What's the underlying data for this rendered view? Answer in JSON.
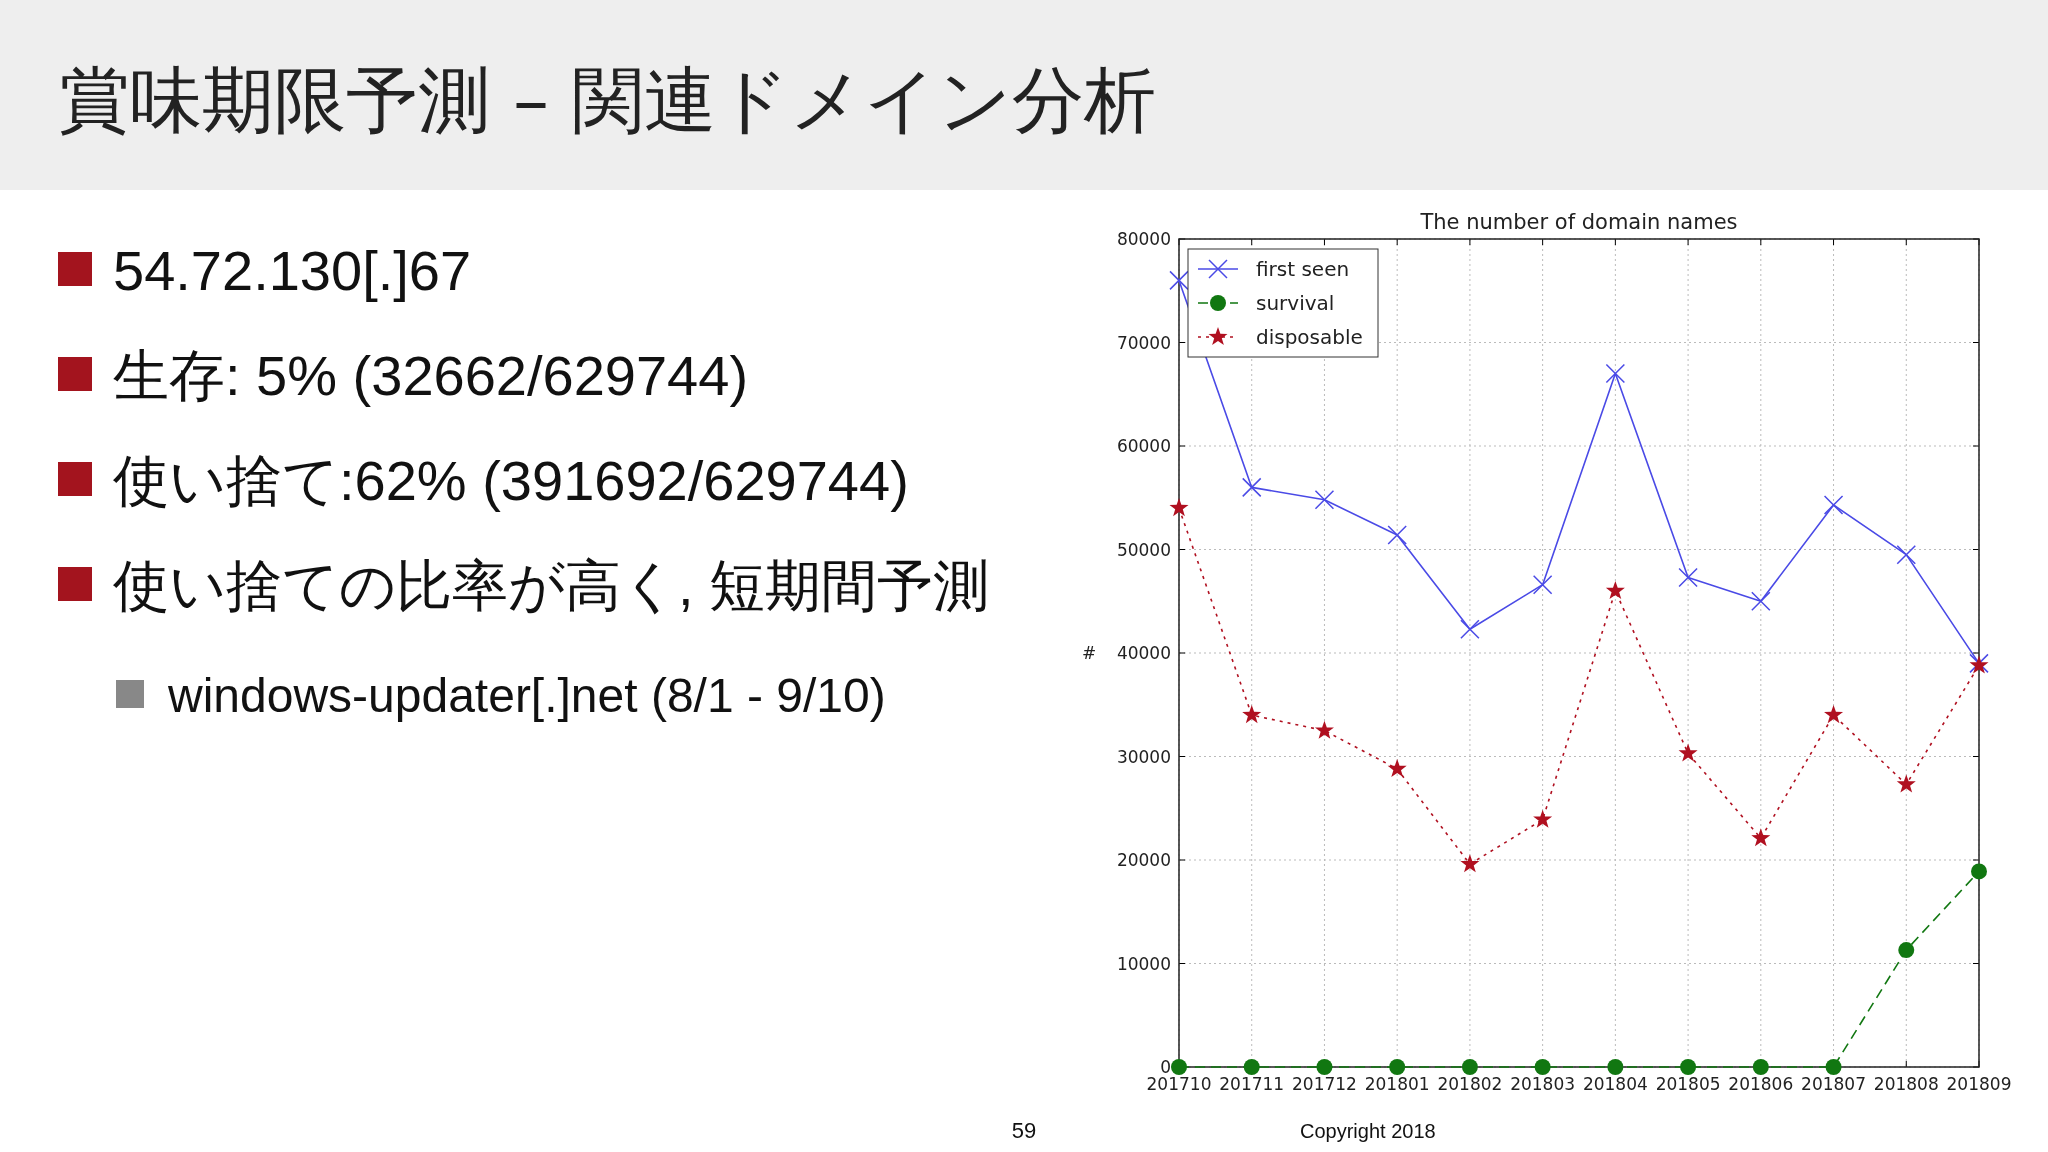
{
  "chart_data": {
    "type": "line",
    "title": "The number of domain names",
    "ylabel": "#",
    "categories": [
      "201710",
      "201711",
      "201712",
      "201801",
      "201802",
      "201803",
      "201804",
      "201805",
      "201806",
      "201807",
      "201808",
      "201809"
    ],
    "series": [
      {
        "name": "first seen",
        "color": "#4a4ae6",
        "marker": "cross",
        "line_style": "solid",
        "values": [
          76000,
          56000,
          54800,
          51400,
          42300,
          46600,
          67000,
          47300,
          45000,
          54300,
          49500,
          39000
        ]
      },
      {
        "name": "survival",
        "color": "#117711",
        "marker": "circle",
        "line_style": "dashed",
        "values": [
          0,
          0,
          0,
          0,
          0,
          0,
          0,
          0,
          0,
          0,
          11300,
          18900
        ]
      },
      {
        "name": "disposable",
        "color": "#b01020",
        "marker": "star",
        "line_style": "dotted",
        "values": [
          54000,
          34000,
          32500,
          28800,
          19600,
          23900,
          46000,
          30300,
          22100,
          34000,
          27300,
          38800
        ]
      }
    ],
    "ylim": [
      0,
      80000
    ],
    "yticks": [
      0,
      10000,
      20000,
      30000,
      40000,
      50000,
      60000,
      70000,
      80000
    ],
    "grid": true,
    "legend": "top left",
    "annotations": [
      "賞味期限予測 – 関連ドメイン分析",
      "54.72.130[.]67",
      "生存:  5% (32662/629744)",
      "使い捨て:62% (391692/629744)",
      "使い捨ての比率が高く, 短期間予測",
      "windows-updater[.]net (8/1 - 9/10)",
      "59",
      "Copyright 2018"
    ]
  }
}
